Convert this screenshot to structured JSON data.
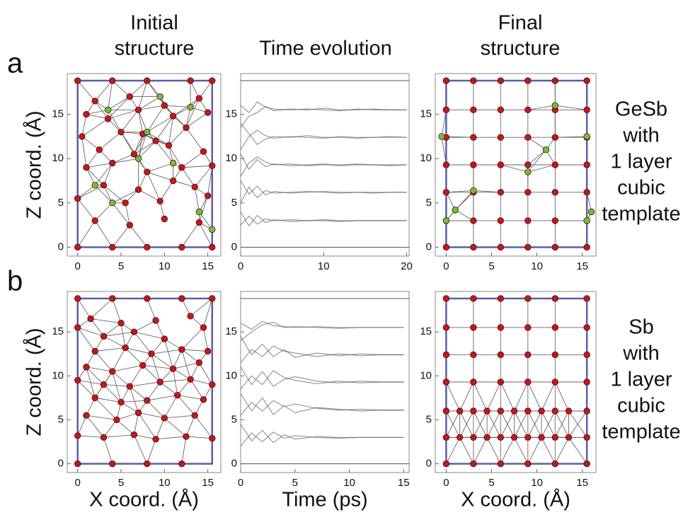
{
  "column_titles": [
    [
      "Initial",
      "structure"
    ],
    [
      "Time evolution"
    ],
    [
      "Final",
      "structure"
    ]
  ],
  "rows": [
    {
      "label": "a",
      "description": [
        "GeSb",
        "with",
        "1 layer",
        "cubic",
        "template"
      ]
    },
    {
      "label": "b",
      "description": [
        "Sb",
        "with",
        "1 layer",
        "cubic",
        "template"
      ]
    }
  ],
  "chart_data": [
    {
      "type": "scatter",
      "ylabel": "Z coord. (Å)",
      "xlim": [
        -1.2,
        16.5
      ],
      "ylim": [
        -1,
        19.6
      ],
      "xticks": [
        0,
        5,
        10,
        15
      ],
      "yticks": [
        0,
        5,
        10,
        15
      ],
      "cell": {
        "x": [
          0,
          15.5
        ],
        "y": [
          0,
          18.8
        ]
      },
      "series": [
        {
          "color": "#c0181c",
          "x": [
            0,
            4,
            8,
            13,
            15.5,
            2,
            6,
            10,
            14,
            1,
            3.5,
            7,
            11,
            15,
            0.5,
            5,
            9,
            12.5,
            2.5,
            6.5,
            10.5,
            14.5,
            1,
            4,
            8,
            12,
            15.5,
            3,
            7,
            11,
            13.5,
            0,
            5.5,
            9.5,
            15,
            2,
            6,
            10,
            14,
            0,
            4,
            8,
            12,
            15.5,
            7.5
          ],
          "y": [
            18.8,
            18.8,
            18.8,
            18.8,
            18.8,
            16.5,
            17,
            16,
            16.8,
            15,
            14.5,
            15.5,
            14.8,
            15.2,
            12.5,
            13,
            12,
            13.5,
            11,
            10.5,
            11.5,
            10.8,
            9,
            9.5,
            8.5,
            9,
            9.2,
            7,
            6.5,
            7.5,
            6.8,
            5.5,
            5,
            5.2,
            5.8,
            3,
            2.5,
            3.2,
            2.8,
            0,
            0,
            0,
            0,
            0,
            12.8
          ]
        },
        {
          "color": "#6bc23a",
          "x": [
            9.5,
            3.5,
            13,
            8,
            7,
            2,
            4,
            14,
            15.5,
            11
          ],
          "y": [
            17,
            15.5,
            15.8,
            13,
            10,
            7,
            5,
            4,
            2,
            9.5
          ]
        }
      ]
    },
    {
      "type": "line",
      "xlim": [
        0,
        20.3
      ],
      "ylim": [
        -1,
        19.6
      ],
      "xticks": [
        0,
        10,
        20
      ],
      "yticks": [
        0,
        5,
        10,
        15
      ],
      "ref_lines": [
        0,
        18.8
      ],
      "x": [
        0,
        1,
        2,
        3,
        4,
        6,
        8,
        10,
        12,
        14,
        16,
        18,
        20
      ],
      "series": [
        {
          "color": "#555555",
          "values": [
            16,
            15.2,
            16.4,
            15.8,
            15.6,
            15.5,
            15.6,
            15.5,
            15.4,
            15.6,
            15.5,
            15.5,
            15.5
          ]
        },
        {
          "color": "#555555",
          "values": [
            13.5,
            14.8,
            15.2,
            15.9,
            15.4,
            15.6,
            15.5,
            15.7,
            15.5,
            15.5,
            15.6,
            15.5,
            15.5
          ]
        },
        {
          "color": "#555555",
          "values": [
            11,
            12.5,
            13.2,
            12.6,
            12.3,
            12.5,
            12.4,
            12.3,
            12.5,
            12.4,
            12.4,
            12.5,
            12.4
          ]
        },
        {
          "color": "#555555",
          "values": [
            14,
            12.8,
            11.6,
            12.2,
            12.5,
            12.4,
            12.6,
            12.4,
            12.4,
            12.3,
            12.4,
            12.4,
            12.4
          ]
        },
        {
          "color": "#555555",
          "values": [
            8,
            9.5,
            10.2,
            9.6,
            9.3,
            9.4,
            9.2,
            9.3,
            9.3,
            9.4,
            9.3,
            9.3,
            9.3
          ]
        },
        {
          "color": "#555555",
          "values": [
            10.5,
            8.8,
            9.9,
            9.1,
            9.4,
            9.2,
            9.3,
            9.4,
            9.2,
            9.3,
            9.3,
            9.2,
            9.3
          ]
        },
        {
          "color": "#555555",
          "values": [
            5,
            6.8,
            5.6,
            6.4,
            6.1,
            6.2,
            6.3,
            6.2,
            6.1,
            6.2,
            6.2,
            6.2,
            6.2
          ]
        },
        {
          "color": "#555555",
          "values": [
            7.5,
            6,
            6.9,
            5.9,
            6.3,
            6.1,
            6.2,
            6.3,
            6.2,
            6.2,
            6.1,
            6.2,
            6.2
          ]
        },
        {
          "color": "#555555",
          "values": [
            2.5,
            3.5,
            2.6,
            3.2,
            3,
            3.1,
            3,
            3,
            2.9,
            3,
            3,
            3,
            3
          ]
        },
        {
          "color": "#555555",
          "values": [
            4,
            2.4,
            3.6,
            2.8,
            3.1,
            2.9,
            3,
            3.1,
            3,
            3,
            3,
            3,
            3
          ]
        }
      ]
    },
    {
      "type": "scatter",
      "xlim": [
        -1.2,
        16.5
      ],
      "ylim": [
        -1,
        19.6
      ],
      "xticks": [
        0,
        5,
        10,
        15
      ],
      "yticks": [
        0,
        5,
        10,
        15
      ],
      "cell": {
        "x": [
          0,
          15.5
        ],
        "y": [
          0,
          18.8
        ]
      },
      "series": [
        {
          "color": "#c0181c",
          "x": [
            0,
            3,
            6,
            9,
            12,
            15.5,
            0,
            3,
            6,
            9,
            12,
            15.5,
            0,
            3,
            6,
            9,
            12,
            15.5,
            0,
            3,
            6,
            9,
            12,
            15.5,
            0,
            3,
            6,
            9,
            12,
            15.5,
            0,
            3,
            6,
            9,
            12,
            15.5,
            0,
            3,
            6,
            9,
            12,
            15.5
          ],
          "y": [
            18.8,
            18.8,
            18.8,
            18.8,
            18.8,
            18.8,
            15.5,
            15.5,
            15.5,
            15.5,
            15.5,
            15.5,
            12.4,
            12.4,
            12.4,
            12.4,
            12.4,
            12.4,
            9.3,
            9.3,
            9.3,
            9.3,
            9.3,
            9.3,
            6.2,
            6.2,
            6.2,
            6.2,
            6.2,
            6.2,
            3,
            3,
            3,
            3,
            3,
            3,
            0,
            0,
            0,
            0,
            0,
            0
          ]
        },
        {
          "color": "#6bc23a",
          "x": [
            12,
            -0.5,
            15.5,
            11,
            9,
            1,
            0,
            15.5,
            16,
            3
          ],
          "y": [
            16,
            12.5,
            12.5,
            11,
            8.5,
            4.2,
            3,
            3,
            4,
            6.4
          ]
        }
      ]
    },
    {
      "type": "scatter",
      "ylabel": "Z coord. (Å)",
      "xlabel": "X coord. (Å)",
      "xlim": [
        -1.2,
        16.5
      ],
      "ylim": [
        -1,
        19.6
      ],
      "xticks": [
        0,
        5,
        10,
        15
      ],
      "yticks": [
        0,
        5,
        10,
        15
      ],
      "cell": {
        "x": [
          0,
          15.5
        ],
        "y": [
          0,
          18.8
        ]
      },
      "series": [
        {
          "color": "#c0181c",
          "x": [
            0,
            4,
            8,
            12,
            15.5,
            1.5,
            5,
            9,
            13,
            0,
            3,
            6.5,
            10,
            14.5,
            2,
            5.5,
            8.5,
            12,
            15,
            1,
            4,
            7.5,
            11,
            14,
            0,
            3,
            6,
            9.5,
            13,
            15.5,
            2,
            5,
            8,
            11.5,
            14.5,
            1,
            4.5,
            7,
            10,
            13.5,
            0,
            3,
            6.5,
            9,
            12.5,
            15.5,
            0,
            4,
            8,
            12
          ],
          "y": [
            18.8,
            18.8,
            18.8,
            18.8,
            18.8,
            16.5,
            16,
            16.3,
            16.8,
            15.5,
            14.5,
            15,
            14.2,
            15.5,
            12.8,
            13.2,
            12.5,
            13,
            12.8,
            11,
            10.5,
            11.2,
            10.8,
            11.5,
            9.5,
            9,
            8.8,
            9.3,
            9.6,
            9,
            7.5,
            7,
            7.2,
            7.8,
            7.3,
            5.5,
            5,
            5.8,
            5.2,
            5.5,
            3.2,
            3,
            3.3,
            2.8,
            3.1,
            2.9,
            0,
            0,
            0,
            0
          ]
        }
      ]
    },
    {
      "type": "line",
      "xlabel": "Time (ps)",
      "xlim": [
        0,
        15.5
      ],
      "ylim": [
        -1,
        19.6
      ],
      "xticks": [
        0,
        5,
        10,
        15
      ],
      "yticks": [
        0,
        5,
        10,
        15
      ],
      "ref_lines": [
        0,
        18.8
      ],
      "x": [
        0,
        1,
        2,
        3,
        4,
        5,
        7,
        9,
        11,
        13,
        15
      ],
      "series": [
        {
          "color": "#555555",
          "values": [
            16,
            15.3,
            16.2,
            15.7,
            15.6,
            15.5,
            15.6,
            15.5,
            15.5,
            15.5,
            15.5
          ]
        },
        {
          "color": "#555555",
          "values": [
            14,
            15,
            15.8,
            16.1,
            15.5,
            15.6,
            15.5,
            15.4,
            15.5,
            15.5,
            15.5
          ]
        },
        {
          "color": "#555555",
          "values": [
            11.5,
            13,
            12.2,
            13.4,
            12.8,
            12.6,
            12.2,
            12.5,
            12.3,
            12.4,
            12.4
          ]
        },
        {
          "color": "#555555",
          "values": [
            14.5,
            12.4,
            13.6,
            12.2,
            13,
            12.1,
            12.6,
            12.3,
            12.5,
            12.4,
            12.4
          ]
        },
        {
          "color": "#555555",
          "values": [
            8.5,
            10,
            9,
            10.6,
            9.8,
            9.5,
            9.1,
            9.4,
            9.2,
            9.3,
            9.3
          ]
        },
        {
          "color": "#555555",
          "values": [
            11,
            9,
            10.5,
            8.8,
            9.6,
            9.9,
            9.4,
            9.2,
            9.4,
            9.3,
            9.3
          ]
        },
        {
          "color": "#555555",
          "values": [
            5.5,
            7,
            6,
            7.2,
            6.5,
            6.8,
            6.3,
            6.1,
            6.2,
            6.1,
            6.1
          ]
        },
        {
          "color": "#555555",
          "values": [
            8,
            6,
            7.5,
            5.6,
            6.6,
            5.8,
            6.4,
            6.2,
            6,
            6.1,
            6.1
          ]
        },
        {
          "color": "#555555",
          "values": [
            2,
            3.5,
            2.5,
            3.6,
            2.9,
            3.2,
            3,
            2.9,
            3,
            3,
            3
          ]
        },
        {
          "color": "#555555",
          "values": [
            4.5,
            2.6,
            3.8,
            2.4,
            3.3,
            2.8,
            3.1,
            3,
            3,
            3,
            3
          ]
        }
      ]
    },
    {
      "type": "scatter",
      "xlabel": "X coord. (Å)",
      "xlim": [
        -1.2,
        16.5
      ],
      "ylim": [
        -1,
        19.6
      ],
      "xticks": [
        0,
        5,
        10,
        15
      ],
      "yticks": [
        0,
        5,
        10,
        15
      ],
      "cell": {
        "x": [
          0,
          15.5
        ],
        "y": [
          0,
          18.8
        ]
      },
      "series": [
        {
          "color": "#c0181c",
          "x": [
            0,
            3,
            6,
            9,
            12,
            15.5,
            0,
            3,
            6,
            9,
            12,
            15.5,
            0,
            3,
            6,
            9,
            12,
            15.5,
            0,
            3,
            6,
            9,
            12,
            15.5,
            0,
            1.5,
            3,
            4.5,
            6,
            7.5,
            9,
            10.5,
            12,
            13.5,
            15.5,
            0,
            1.5,
            3,
            4.5,
            6,
            7.5,
            9,
            10.5,
            12,
            13.5,
            15.5,
            0,
            3,
            6,
            9,
            12,
            15.5
          ],
          "y": [
            18.8,
            18.8,
            18.8,
            18.8,
            18.8,
            18.8,
            15.5,
            15.5,
            15.5,
            15.5,
            15.5,
            15.5,
            12.4,
            12.4,
            12.4,
            12.4,
            12.4,
            12.4,
            9.3,
            9.3,
            9.3,
            9.3,
            9.3,
            9.3,
            6,
            6,
            6,
            6,
            6,
            6,
            6,
            6,
            6,
            6,
            6,
            3,
            3,
            3,
            3,
            3,
            3,
            3,
            3,
            3,
            3,
            3,
            0,
            0,
            0,
            0,
            0,
            0
          ]
        }
      ]
    }
  ]
}
